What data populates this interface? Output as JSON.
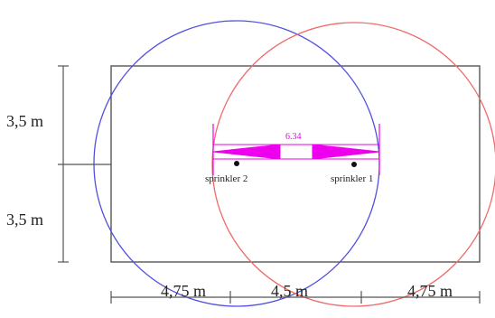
{
  "dimensions": {
    "left_upper_height": "3,5 m",
    "left_lower_height": "3,5 m",
    "bottom_left_width": "4,75 m",
    "bottom_middle_width": "4,5 m",
    "bottom_right_width": "4,75 m",
    "sprinkler_distance": "6.34"
  },
  "sprinklers": {
    "left_label": "sprinkler 2",
    "right_label": "sprinkler 1"
  },
  "colors": {
    "room_outline": "#555555",
    "sprinkler_2_coverage": "#5050e0",
    "sprinkler_1_coverage": "#f06a6a",
    "distance_marker": "#ee00ee",
    "dimension_lines": "#555555",
    "text": "#222222"
  }
}
